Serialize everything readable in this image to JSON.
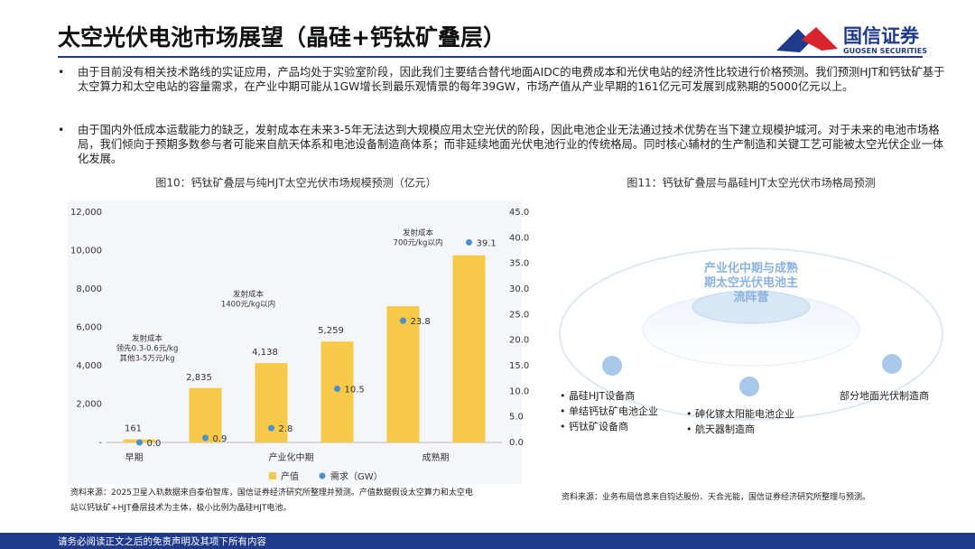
{
  "header": {
    "title": "太空光伏电池市场展望（晶硅+钙钛矿叠层）",
    "logo": "国信证券",
    "logo_en": "GUOSEN SECURITIES"
  },
  "bullets": [
    "由于目前没有相关技术路线的实证应用，产品均处于实验室阶段，因此我们主要结合替代地面AIDC的电费成本和光伏电站的经济性比较进行价格预测。我们预测HJT和钙钛矿基于太空算力和太空电站的容量需求，在产业中期可能从1GW增长到最乐观情景的每年39GW，市场产值从产业早期的161亿元可发展到成熟期的5000亿元以上。",
    "由于国内外低成本运载能力的缺乏，发射成本在未来3-5年无法达到大规模应用太空光伏的阶段，因此电池企业无法通过技术优势在当下建立规模护城河。对于未来的电池市场格局，我们倾向于预期多数参与者可能来自航天体系和电池设备制造商体系；而非延续地面光伏电池行业的传统格局。同时核心辅材的生产制造和关键工艺可能被太空光伏企业一体化发展。"
  ],
  "chart_data": {
    "type": "bar",
    "title": "图10：钙钛矿叠层与纯HJT太空光伏市场规模预测（亿元）",
    "categories": [
      "早期",
      null,
      "产业化中期",
      null,
      "成熟期",
      null
    ],
    "series": [
      {
        "name": "产值",
        "color": "#f7c948",
        "values": [
          161,
          2835,
          4138,
          5259,
          7100,
          9750
        ],
        "value_labels": [
          "161",
          "2,835",
          "4,138",
          "5,259",
          null,
          null
        ]
      },
      {
        "name": "需求（GW）",
        "color": "#4a90d0",
        "type": "scatter",
        "axis": "y2",
        "values": [
          0.0,
          0.9,
          2.8,
          10.5,
          23.8,
          39.1
        ],
        "value_labels": [
          "0.0",
          "0.9",
          "2.8",
          "10.5",
          "23.8",
          "39.1"
        ]
      }
    ],
    "ylim": [
      0,
      12000
    ],
    "yticks": [
      {
        "value": 0,
        "label": "-"
      },
      {
        "value": 2000,
        "label": "2,000"
      },
      {
        "value": 4000,
        "label": "4,000"
      },
      {
        "value": 6000,
        "label": "6,000"
      },
      {
        "value": 8000,
        "label": "8,000"
      },
      {
        "value": 10000,
        "label": "10,000"
      },
      {
        "value": 12000,
        "label": "12,000"
      }
    ],
    "y2lim": [
      0,
      45
    ],
    "y2ticks": [
      {
        "value": 0,
        "label": "0.0"
      },
      {
        "value": 5,
        "label": "5.0"
      },
      {
        "value": 10,
        "label": "10.0"
      },
      {
        "value": 15,
        "label": "15.0"
      },
      {
        "value": 20,
        "label": "20.0"
      },
      {
        "value": 25,
        "label": "25.0"
      },
      {
        "value": 30,
        "label": "30.0"
      },
      {
        "value": 35,
        "label": "35.0"
      },
      {
        "value": 40,
        "label": "40.0"
      },
      {
        "value": 45,
        "label": "45.0"
      }
    ],
    "annotations": [
      [
        "发射成本",
        "领先0.3-0.6元/kg",
        "其他3-5万元/kg"
      ],
      [
        "发射成本",
        "1400元/kg以内"
      ],
      [
        "发射成本",
        "700元/kg以内"
      ]
    ],
    "source": [
      "资料来源：2025卫星入轨数据来自泰伯智库，国信证券经济研究所整理并预测。产值数据假设太空算力和太空电",
      "站以钙钛矿+HJT叠层技术为主体，极小比例为晶硅HJT电池。"
    ]
  },
  "figure11": {
    "title": "图11：钙钛矿叠层与晶硅HJT太空光伏市场格局预测",
    "center": [
      "产业化中期与成熟",
      "期太空光伏电池主",
      "流阵营"
    ],
    "left": [
      "晶硅HJT设备商",
      "单结钙钛矿电池企业",
      "钙钛矿设备商"
    ],
    "middle": [
      "砷化镓太阳能电池企业",
      "航天器制造商"
    ],
    "right": "部分地面光伏制造商",
    "source": "资料来源：业务布局信息来自钧达股份、天合光能，国信证券经济研究所整理与预测。"
  },
  "footer": "请务必阅读正文之后的免责声明及其项下所有内容"
}
